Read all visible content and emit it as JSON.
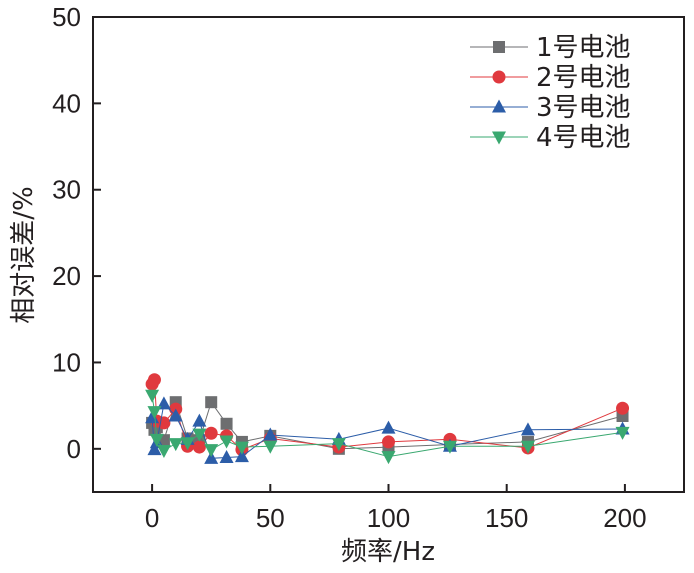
{
  "chart_data": {
    "type": "line",
    "xlabel": "频率/Hz",
    "ylabel": "相对误差/%",
    "xlim": [
      -25,
      225
    ],
    "ylim": [
      -5,
      50
    ],
    "xticks": [
      0,
      50,
      100,
      150,
      200
    ],
    "yticks": [
      0,
      10,
      20,
      30,
      40,
      50
    ],
    "xtick_labels": [
      "0",
      "50",
      "100",
      "150",
      "200"
    ],
    "ytick_labels": [
      "0",
      "10",
      "20",
      "30",
      "40",
      "50"
    ],
    "grid": false,
    "legend_position": "top-right",
    "series": [
      {
        "name": "1号电池",
        "color": "#6d6e70",
        "marker": "square",
        "points": [
          [
            0,
            3.0
          ],
          [
            1,
            2.2
          ],
          [
            2,
            2.5
          ],
          [
            5,
            1.0
          ],
          [
            10,
            5.4
          ],
          [
            15,
            1.2
          ],
          [
            20,
            1.0
          ],
          [
            25,
            5.4
          ],
          [
            31.5,
            2.9
          ],
          [
            38,
            0.8
          ],
          [
            50,
            1.5
          ],
          [
            79,
            0.0
          ],
          [
            100,
            0.2
          ],
          [
            126,
            0.5
          ],
          [
            159,
            0.8
          ],
          [
            199,
            3.8
          ]
        ]
      },
      {
        "name": "2号电池",
        "color": "#e0393e",
        "marker": "circle",
        "points": [
          [
            0,
            7.5
          ],
          [
            1,
            8.0
          ],
          [
            2,
            3.2
          ],
          [
            5,
            3.0
          ],
          [
            10,
            4.6
          ],
          [
            15,
            0.3
          ],
          [
            20,
            0.2
          ],
          [
            25,
            1.8
          ],
          [
            31.5,
            1.5
          ],
          [
            38,
            -0.1
          ],
          [
            50,
            1.2
          ],
          [
            79,
            0.2
          ],
          [
            100,
            0.8
          ],
          [
            126,
            1.1
          ],
          [
            159,
            0.1
          ],
          [
            199,
            4.7
          ]
        ]
      },
      {
        "name": "3号电池",
        "color": "#2c5da8",
        "marker": "triangle-up",
        "points": [
          [
            0,
            3.6
          ],
          [
            1,
            -0.1
          ],
          [
            2,
            0.7
          ],
          [
            5,
            5.2
          ],
          [
            10,
            3.8
          ],
          [
            15,
            1.1
          ],
          [
            20,
            3.2
          ],
          [
            25,
            -1.1
          ],
          [
            31.5,
            -1.0
          ],
          [
            38,
            -0.9
          ],
          [
            50,
            1.6
          ],
          [
            79,
            1.1
          ],
          [
            100,
            2.4
          ],
          [
            126,
            0.3
          ],
          [
            159,
            2.2
          ],
          [
            199,
            2.3
          ]
        ]
      },
      {
        "name": "4号电池",
        "color": "#3aa870",
        "marker": "triangle-down",
        "points": [
          [
            0,
            6.2
          ],
          [
            1,
            4.3
          ],
          [
            2,
            1.1
          ],
          [
            5,
            -0.2
          ],
          [
            10,
            0.6
          ],
          [
            15,
            0.7
          ],
          [
            20,
            1.7
          ],
          [
            25,
            -0.1
          ],
          [
            31.5,
            0.9
          ],
          [
            38,
            0.2
          ],
          [
            50,
            0.3
          ],
          [
            79,
            0.6
          ],
          [
            100,
            -0.9
          ],
          [
            126,
            0.3
          ],
          [
            159,
            0.3
          ],
          [
            199,
            1.9
          ]
        ]
      }
    ]
  }
}
